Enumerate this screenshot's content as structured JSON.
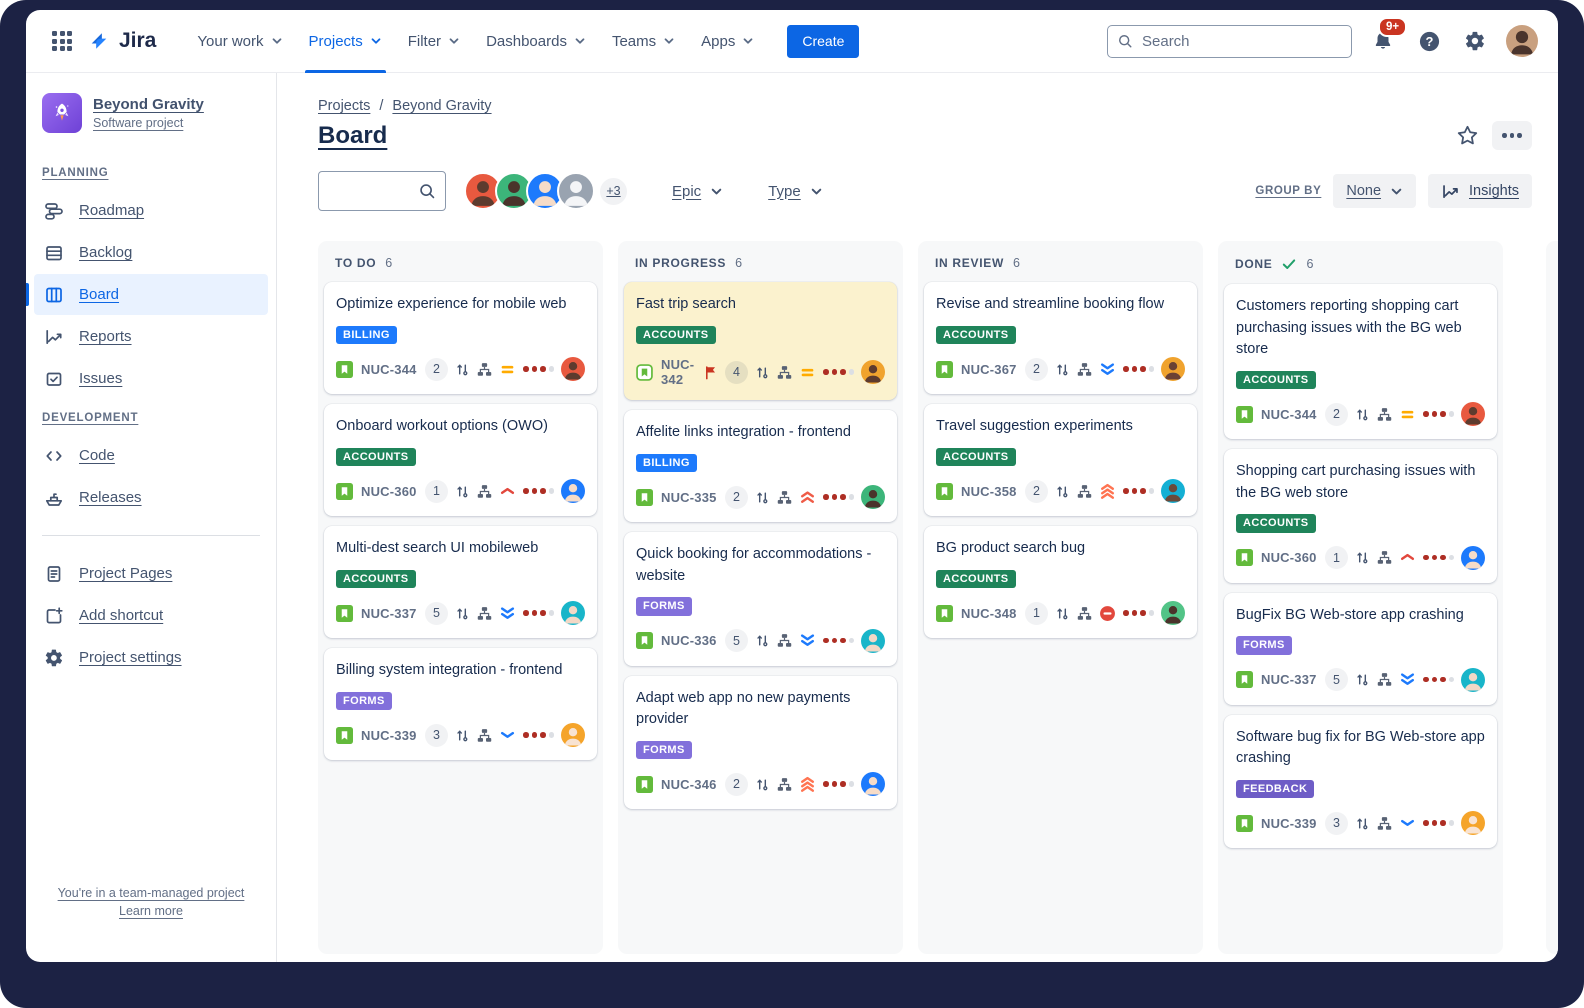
{
  "colors": {
    "accent": "#0c66e4",
    "backdrop": "#1c2244",
    "flagged_card_bg": "#fbf2ce",
    "chip": {
      "BILLING": "#1d7afc",
      "ACCOUNTS": "#1f845a",
      "FORMS": "#8270db",
      "FEEDBACK": "#6e5dc6"
    },
    "priority": {
      "medium": "#ffab00",
      "high1": "#e2483d",
      "high2": "#ef5c48",
      "high3": "#ff7452",
      "low1": "#1d7afc",
      "low2": "#1d7afc",
      "blocked": "#e2483d"
    },
    "dot_filled": "#ae2e24",
    "dot_empty": "#dcdfe4",
    "story_green": "#63ba3c"
  },
  "topnav": {
    "logo": "Jira",
    "items": [
      {
        "label": "Your work",
        "active": false
      },
      {
        "label": "Projects",
        "active": true
      },
      {
        "label": "Filter",
        "active": false
      },
      {
        "label": "Dashboards",
        "active": false
      },
      {
        "label": "Teams",
        "active": false
      },
      {
        "label": "Apps",
        "active": false
      }
    ],
    "create_label": "Create",
    "search_placeholder": "Search",
    "notification_badge": "9+"
  },
  "sidebar": {
    "project_name": "Beyond Gravity",
    "project_type": "Software project",
    "sections": [
      {
        "title": "PLANNING",
        "items": [
          {
            "label": "Roadmap",
            "icon": "roadmap-icon",
            "active": false
          },
          {
            "label": "Backlog",
            "icon": "backlog-icon",
            "active": false
          },
          {
            "label": "Board",
            "icon": "board-icon",
            "active": true
          },
          {
            "label": "Reports",
            "icon": "reports-icon",
            "active": false
          },
          {
            "label": "Issues",
            "icon": "issues-icon",
            "active": false
          }
        ]
      },
      {
        "title": "DEVELOPMENT",
        "items": [
          {
            "label": "Code",
            "icon": "code-icon",
            "active": false
          },
          {
            "label": "Releases",
            "icon": "releases-icon",
            "active": false
          }
        ]
      }
    ],
    "extra_items": [
      {
        "label": "Project Pages",
        "icon": "pages-icon"
      },
      {
        "label": "Add shortcut",
        "icon": "add-shortcut-icon"
      },
      {
        "label": "Project settings",
        "icon": "settings-icon"
      }
    ],
    "footer": {
      "line1": "You're in a team-managed project",
      "line2": "Learn more"
    }
  },
  "board_header": {
    "breadcrumb": [
      "Projects",
      "Beyond Gravity"
    ],
    "title": "Board",
    "search_placeholder": "",
    "avatars": [
      {
        "bg": "#e8593f",
        "skin": "#5d3b2e"
      },
      {
        "bg": "#3cb57a",
        "skin": "#4a332b"
      },
      {
        "bg": "#1d7afc",
        "skin": "#f6dcc8"
      },
      {
        "bg": "#99a3b0",
        "skin": "#f4f5f7"
      }
    ],
    "avatar_overflow": "+3",
    "filters": [
      {
        "label": "Epic"
      },
      {
        "label": "Type"
      }
    ],
    "group_by_label": "GROUP BY",
    "group_by_value": "None",
    "insights_label": "Insights"
  },
  "board": {
    "columns": [
      {
        "name": "TO DO",
        "count": "6",
        "done": false,
        "cards": [
          {
            "title": "Optimize experience for mobile web",
            "label": "BILLING",
            "key": "NUC-344",
            "estimate": "2",
            "priority": "medium",
            "flagged": false,
            "avatar": {
              "bg": "#e8593f",
              "skin": "#5d3b2e"
            }
          },
          {
            "title": "Onboard workout options (OWO)",
            "label": "ACCOUNTS",
            "key": "NUC-360",
            "estimate": "1",
            "priority": "high1",
            "flagged": false,
            "avatar": {
              "bg": "#1d7afc",
              "skin": "#f6dcc8"
            }
          },
          {
            "title": "Multi-dest search UI mobileweb",
            "label": "ACCOUNTS",
            "key": "NUC-337",
            "estimate": "5",
            "priority": "low2",
            "flagged": false,
            "avatar": {
              "bg": "#19b5c9",
              "skin": "#f2d8c6"
            }
          },
          {
            "title": "Billing system integration - frontend",
            "label": "FORMS",
            "key": "NUC-339",
            "estimate": "3",
            "priority": "low1",
            "flagged": false,
            "avatar": {
              "bg": "#f5a42a",
              "skin": "#f8e3d2"
            }
          }
        ]
      },
      {
        "name": "IN PROGRESS",
        "count": "6",
        "done": false,
        "cards": [
          {
            "title": "Fast trip search",
            "label": "ACCOUNTS",
            "key": "NUC-342",
            "estimate": "4",
            "priority": "medium",
            "flagged": true,
            "avatar": {
              "bg": "#f0a32e",
              "skin": "#5d3b2e"
            }
          },
          {
            "title": "Affelite links integration - frontend",
            "label": "BILLING",
            "key": "NUC-335",
            "estimate": "2",
            "priority": "high2",
            "flagged": false,
            "avatar": {
              "bg": "#3cb57a",
              "skin": "#4a332b"
            }
          },
          {
            "title": "Quick booking for accommodations - website",
            "label": "FORMS",
            "key": "NUC-336",
            "estimate": "5",
            "priority": "low2",
            "flagged": false,
            "avatar": {
              "bg": "#19b5c9",
              "skin": "#f2d8c6"
            }
          },
          {
            "title": "Adapt web app no new payments provider",
            "label": "FORMS",
            "key": "NUC-346",
            "estimate": "2",
            "priority": "high3",
            "flagged": false,
            "avatar": {
              "bg": "#1d7afc",
              "skin": "#f6dcc8"
            }
          }
        ]
      },
      {
        "name": "IN REVIEW",
        "count": "6",
        "done": false,
        "cards": [
          {
            "title": "Revise and streamline booking flow",
            "label": "ACCOUNTS",
            "key": "NUC-367",
            "estimate": "2",
            "priority": "low2",
            "flagged": false,
            "avatar": {
              "bg": "#f0a32e",
              "skin": "#6b4134"
            }
          },
          {
            "title": "Travel suggestion experiments",
            "label": "ACCOUNTS",
            "key": "NUC-358",
            "estimate": "2",
            "priority": "high3",
            "flagged": false,
            "avatar": {
              "bg": "#14b0d4",
              "skin": "#6b4a3a"
            }
          },
          {
            "title": "BG product search bug",
            "label": "ACCOUNTS",
            "key": "NUC-348",
            "estimate": "1",
            "priority": "blocked",
            "flagged": false,
            "avatar": {
              "bg": "#52c487",
              "skin": "#4a332b"
            }
          }
        ]
      },
      {
        "name": "DONE",
        "count": "6",
        "done": true,
        "cards": [
          {
            "title": "Customers reporting shopping cart purchasing issues with the BG web store",
            "label": "ACCOUNTS",
            "key": "NUC-344",
            "estimate": "2",
            "priority": "medium",
            "flagged": false,
            "avatar": {
              "bg": "#e8593f",
              "skin": "#5d3b2e"
            }
          },
          {
            "title": "Shopping cart purchasing issues with the BG web store",
            "label": "ACCOUNTS",
            "key": "NUC-360",
            "estimate": "1",
            "priority": "high1",
            "flagged": false,
            "avatar": {
              "bg": "#1d7afc",
              "skin": "#f6dcc8"
            }
          },
          {
            "title": "BugFix BG Web-store app crashing",
            "label": "FORMS",
            "key": "NUC-337",
            "estimate": "5",
            "priority": "low2",
            "flagged": false,
            "avatar": {
              "bg": "#19b5c9",
              "skin": "#f2d8c6"
            }
          },
          {
            "title": "Software bug fix for BG Web-store app crashing",
            "label": "FEEDBACK",
            "key": "NUC-339",
            "estimate": "3",
            "priority": "low1",
            "flagged": false,
            "avatar": {
              "bg": "#f5a42a",
              "skin": "#f8e3d2"
            }
          }
        ]
      }
    ]
  }
}
